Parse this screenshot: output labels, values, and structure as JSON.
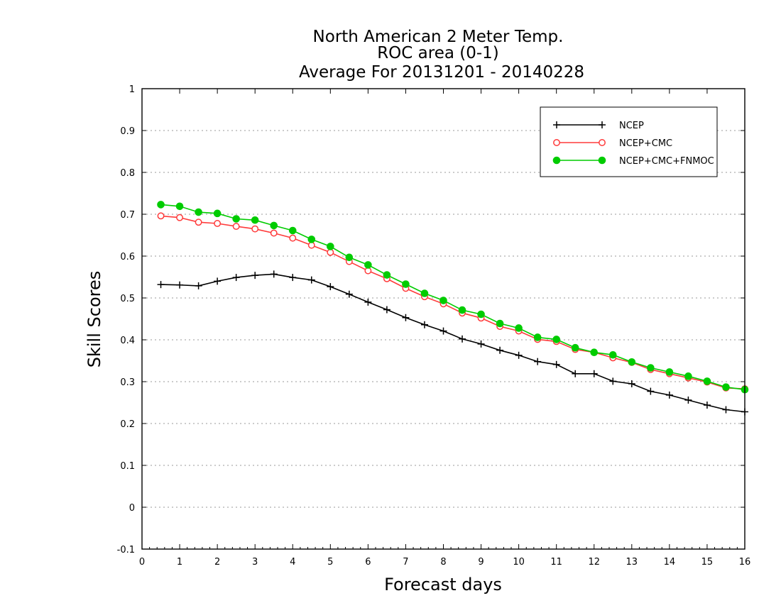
{
  "chart_data": {
    "type": "line",
    "title_lines": [
      "North American 2 Meter Temp.",
      "ROC area (0-1)",
      "Average For 20131201 - 20140228"
    ],
    "xlabel": "Forecast days",
    "ylabel": "Skill Scores",
    "xlim": [
      0,
      16
    ],
    "ylim": [
      -0.1,
      1
    ],
    "x_ticks": [
      0,
      1,
      2,
      3,
      4,
      5,
      6,
      7,
      8,
      9,
      10,
      11,
      12,
      13,
      14,
      15,
      16
    ],
    "x_tick_labels": [
      "0",
      "1",
      "2",
      "3",
      "4",
      "5",
      "6",
      "7",
      "8",
      "9",
      "10",
      "11",
      "12",
      "13",
      "14",
      "15",
      "16"
    ],
    "y_ticks": [
      -0.1,
      0,
      0.1,
      0.2,
      0.3,
      0.4,
      0.5,
      0.6,
      0.7,
      0.8,
      0.9,
      1
    ],
    "y_tick_labels": [
      "-0.1",
      "0",
      "0.1",
      "0.2",
      "0.3",
      "0.4",
      "0.5",
      "0.6",
      "0.7",
      "0.8",
      "0.9",
      "1"
    ],
    "grid": "horizontal dotted",
    "legend_position": "top-right",
    "x": [
      0.5,
      1,
      1.5,
      2,
      2.5,
      3,
      3.5,
      4,
      4.5,
      5,
      5.5,
      6,
      6.5,
      7,
      7.5,
      8,
      8.5,
      9,
      9.5,
      10,
      10.5,
      11,
      11.5,
      12,
      12.5,
      13,
      13.5,
      14,
      14.5,
      15,
      15.5,
      16
    ],
    "series": [
      {
        "name": "NCEP",
        "color": "#000000",
        "marker": "plus",
        "values": [
          0.532,
          0.531,
          0.529,
          0.54,
          0.549,
          0.554,
          0.557,
          0.549,
          0.543,
          0.527,
          0.509,
          0.49,
          0.472,
          0.453,
          0.436,
          0.421,
          0.402,
          0.39,
          0.375,
          0.363,
          0.348,
          0.341,
          0.319,
          0.319,
          0.301,
          0.295,
          0.277,
          0.268,
          0.256,
          0.244,
          0.233,
          0.228
        ]
      },
      {
        "name": "NCEP+CMC",
        "color": "#ff3b3b",
        "marker": "open-circle",
        "values": [
          0.696,
          0.692,
          0.681,
          0.678,
          0.671,
          0.665,
          0.655,
          0.643,
          0.626,
          0.609,
          0.587,
          0.565,
          0.546,
          0.523,
          0.503,
          0.486,
          0.464,
          0.452,
          0.432,
          0.421,
          0.401,
          0.396,
          0.377,
          0.37,
          0.357,
          0.346,
          0.329,
          0.319,
          0.309,
          0.299,
          0.285,
          0.283
        ]
      },
      {
        "name": "NCEP+CMC+FNMOC",
        "color": "#00cc00",
        "marker": "filled-circle",
        "values": [
          0.723,
          0.719,
          0.705,
          0.702,
          0.689,
          0.686,
          0.673,
          0.661,
          0.64,
          0.623,
          0.597,
          0.579,
          0.555,
          0.533,
          0.511,
          0.494,
          0.471,
          0.461,
          0.439,
          0.428,
          0.406,
          0.401,
          0.381,
          0.37,
          0.364,
          0.347,
          0.333,
          0.323,
          0.313,
          0.301,
          0.287,
          0.281
        ]
      }
    ]
  }
}
